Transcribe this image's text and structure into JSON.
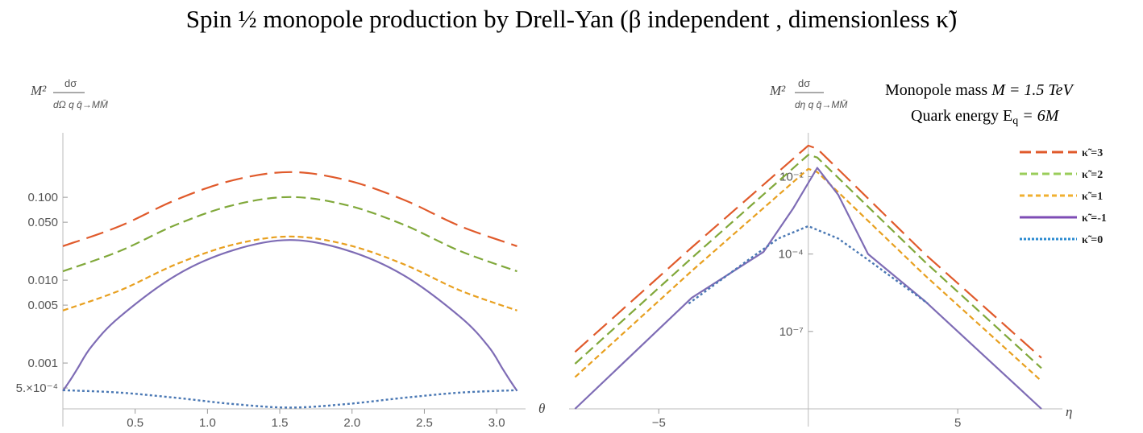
{
  "title": "Spin ½ monopole production by Drell-Yan (β independent , dimensionless κ̃)",
  "chart_data": [
    {
      "type": "line",
      "yscale": "log",
      "ylabel_main": "M²",
      "ylabel_num": "dσ",
      "ylabel_den": "dΩ q q̄→MM̄",
      "xlabel": "θ",
      "xlim": [
        0,
        3.2
      ],
      "ylim": [
        0.00028,
        0.6
      ],
      "xticks": [
        0.5,
        1.0,
        1.5,
        2.0,
        2.5,
        3.0
      ],
      "xtick_labels": [
        "0.5",
        "1.0",
        "1.5",
        "2.0",
        "2.5",
        "3.0"
      ],
      "yticks": [
        0.0005,
        0.001,
        0.005,
        0.01,
        0.05,
        0.1
      ],
      "ytick_labels": [
        "5.×10⁻⁴",
        "0.001",
        "0.005",
        "0.010",
        "0.050",
        "0.100"
      ],
      "series": [
        {
          "name": "κ̃=3",
          "color": "#e05a2b",
          "dash": "22,9",
          "x": [
            0,
            0.3925,
            0.785,
            1.1775,
            1.5708,
            1.9635,
            2.356,
            2.7485,
            3.1416
          ],
          "y": [
            0.0257,
            0.0448,
            0.0936,
            0.1608,
            0.2017,
            0.1608,
            0.0936,
            0.0448,
            0.0257
          ]
        },
        {
          "name": "κ̃=2",
          "color": "#80a83a",
          "dash": "12,6",
          "x": [
            0,
            0.3925,
            0.785,
            1.1775,
            1.5708,
            1.9635,
            2.356,
            2.7485,
            3.1416
          ],
          "y": [
            0.0128,
            0.0224,
            0.0468,
            0.0804,
            0.1008,
            0.0804,
            0.0468,
            0.0224,
            0.0128
          ]
        },
        {
          "name": "κ̃=1",
          "color": "#e8a020",
          "dash": "7,4",
          "x": [
            0,
            0.3925,
            0.785,
            1.1775,
            1.5708,
            1.9635,
            2.356,
            2.7485,
            3.1416
          ],
          "y": [
            0.0043,
            0.0075,
            0.0156,
            0.0268,
            0.0336,
            0.0268,
            0.0156,
            0.0075,
            0.0043
          ]
        },
        {
          "name": "κ̃=-1",
          "color": "#7e6cb5",
          "dash": "",
          "x": [
            0,
            0.05,
            0.1,
            0.2,
            0.3925,
            0.785,
            1.1775,
            1.5708,
            1.9635,
            2.356,
            2.7485,
            2.9416,
            3.0416,
            3.0916,
            3.1416
          ],
          "y": [
            0.00046,
            0.00062,
            0.00085,
            0.0016,
            0.0036,
            0.0115,
            0.023,
            0.0305,
            0.023,
            0.0115,
            0.0036,
            0.0016,
            0.00085,
            0.00062,
            0.00046
          ]
        },
        {
          "name": "κ̃=0",
          "color": "#4a78b4",
          "dash": "3,3",
          "x": [
            0,
            0.3925,
            0.785,
            1.1775,
            1.5708,
            1.9635,
            2.356,
            2.7485,
            3.1416
          ],
          "y": [
            0.00047,
            0.00044,
            0.00038,
            0.00032,
            0.00029,
            0.00032,
            0.00038,
            0.00044,
            0.00047
          ]
        }
      ]
    },
    {
      "type": "line",
      "yscale": "log",
      "ylabel_main": "M²",
      "ylabel_num": "dσ",
      "ylabel_den": "dη q q̄→MM̄",
      "xlabel": "η",
      "xlim": [
        -8,
        8.5
      ],
      "ylim": [
        1e-10,
        5
      ],
      "xticks": [
        -5,
        5
      ],
      "xtick_labels": [
        "−5",
        "5"
      ],
      "yticks": [
        1e-07,
        0.0001,
        0.1
      ],
      "ytick_labels": [
        "10⁻⁷",
        "10⁻⁴",
        "10⁻¹"
      ],
      "series": [
        {
          "name": "κ̃=3",
          "color": "#e05a2b",
          "dash": "22,9",
          "x": [
            -7.8,
            -3.9,
            0,
            0.3,
            3.9,
            7.8
          ],
          "y": [
            1.6e-08,
            0.00018,
            1.6,
            1.2,
            0.0001,
            9.5e-09
          ]
        },
        {
          "name": "κ̃=2",
          "color": "#80a83a",
          "dash": "12,6",
          "x": [
            -7.8,
            -3.9,
            0,
            0.3,
            3.9,
            7.8
          ],
          "y": [
            5.6e-09,
            7e-05,
            0.7,
            0.55,
            5e-05,
            3.8e-09
          ]
        },
        {
          "name": "κ̃=1",
          "color": "#e8a020",
          "dash": "7,4",
          "x": [
            -7.8,
            -3.9,
            0,
            0.3,
            3.9,
            7.8
          ],
          "y": [
            1.7e-09,
            2.2e-05,
            0.2,
            0.15,
            1.5e-05,
            1.2e-09
          ]
        },
        {
          "name": "κ̃=-1",
          "color": "#7e6cb5",
          "dash": "",
          "x": [
            -7.8,
            -3.9,
            -1.5,
            -0.5,
            0.3,
            1,
            2,
            3.9,
            7.8
          ],
          "y": [
            1e-10,
            2e-06,
            0.00012,
            0.006,
            0.22,
            0.02,
            0.0001,
            1.5e-06,
            1e-10
          ]
        },
        {
          "name": "κ̃=0",
          "color": "#4a78b4",
          "dash": "3,3",
          "x": [
            -4,
            -2,
            -1,
            0,
            1,
            2,
            4
          ],
          "y": [
            1.2e-06,
            6e-05,
            0.0004,
            0.0012,
            0.0004,
            6e-05,
            1.2e-06
          ]
        }
      ]
    }
  ],
  "annotation": {
    "line1_text": "Monopole mass ",
    "line1_math": "M = 1.5 TeV",
    "line2_text": "Quark energy ",
    "line2_math": "E",
    "line2_sub": "q",
    "line2_rest": " = 6M"
  },
  "legend": [
    {
      "label": "κ̃ =3",
      "color": "#e05a2b",
      "dash": "14,6"
    },
    {
      "label": "κ̃ =2",
      "color": "#9acd5a",
      "dash": "9,5"
    },
    {
      "label": "κ̃ =1",
      "color": "#f0b030",
      "dash": "6,4"
    },
    {
      "label": "κ̃ =-1",
      "color": "#7e4cb5",
      "dash": ""
    },
    {
      "label": "κ̃ =0",
      "color": "#2a8ad0",
      "dash": "3,2"
    }
  ]
}
